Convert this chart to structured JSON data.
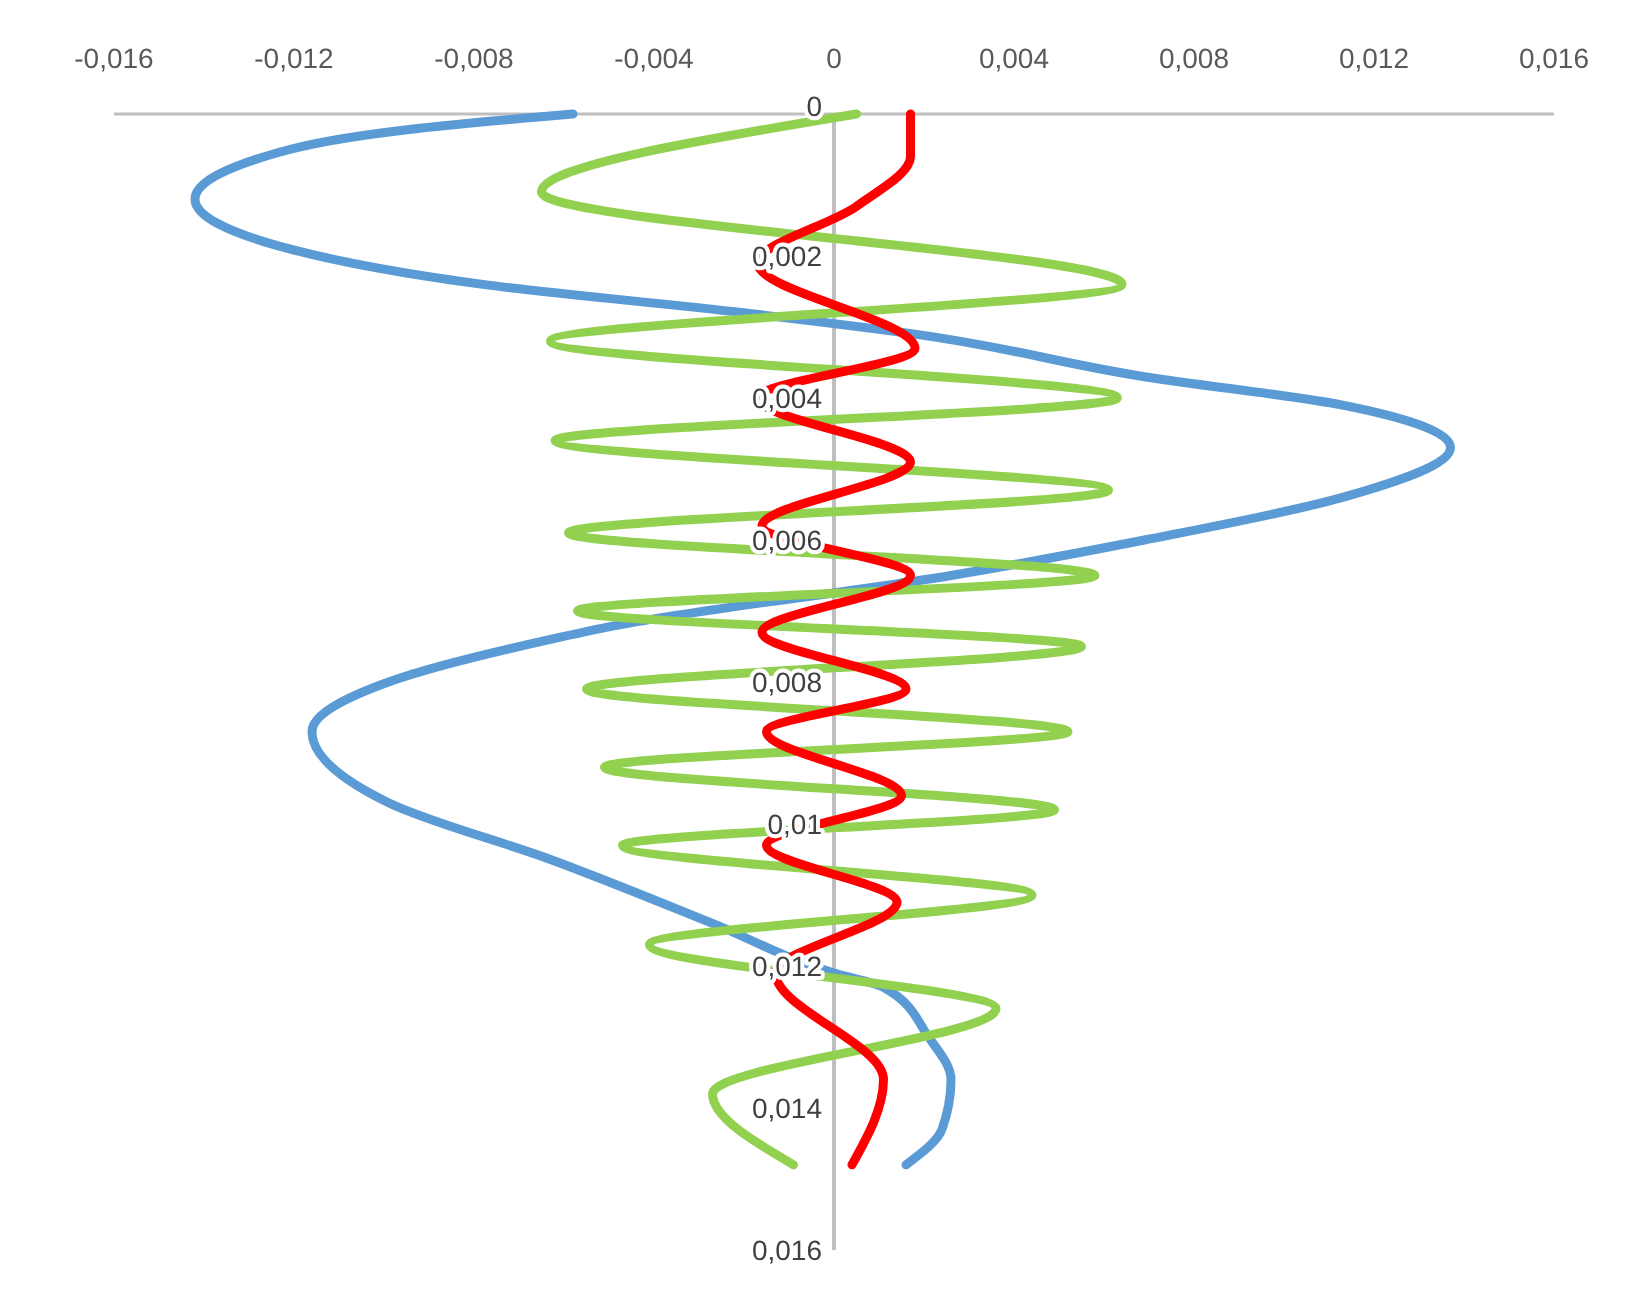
{
  "chart_data": {
    "type": "line",
    "marker": "none",
    "grid": false,
    "xlim": [
      -0.016,
      0.016
    ],
    "xticks": [
      {
        "value": -0.016,
        "label": "-0,016"
      },
      {
        "value": -0.012,
        "label": "-0,012"
      },
      {
        "value": -0.008,
        "label": "-0,008"
      },
      {
        "value": -0.004,
        "label": "-0,004"
      },
      {
        "value": 0,
        "label": "0"
      },
      {
        "value": 0.004,
        "label": "0,004"
      },
      {
        "value": 0.008,
        "label": "0,008"
      },
      {
        "value": 0.012,
        "label": "0,012"
      },
      {
        "value": 0.016,
        "label": "0,016"
      }
    ],
    "ylim": [
      0.016,
      0
    ],
    "yticks": [
      {
        "value": 0,
        "label": "0"
      },
      {
        "value": 0.002,
        "label": "0,002"
      },
      {
        "value": 0.004,
        "label": "0,004"
      },
      {
        "value": 0.006,
        "label": "0,006"
      },
      {
        "value": 0.008,
        "label": "0,008"
      },
      {
        "value": 0.01,
        "label": "0,01"
      },
      {
        "value": 0.012,
        "label": "0,012"
      },
      {
        "value": 0.014,
        "label": "0,014"
      },
      {
        "value": 0.016,
        "label": "0,016"
      }
    ],
    "series": [
      {
        "color": "#5b9bd5",
        "x": [
          -0.0058,
          -0.0092,
          -0.0121,
          -0.0142,
          -0.0121,
          -0.0078,
          -0.002,
          0.0018,
          0.0069,
          0.0113,
          0.0137,
          0.0113,
          0.0069,
          0.0026,
          -0.0048,
          -0.0063,
          -0.0099,
          -0.0116,
          -0.0099,
          -0.0063,
          -0.0027,
          0,
          0.0011,
          0.0021,
          0.0026,
          0.0024,
          0.0016
        ],
        "values": [
          0,
          0.0002,
          0.0005,
          0.0012,
          0.0019,
          0.0024,
          0.0028,
          0.0031,
          0.0037,
          0.0041,
          0.0047,
          0.0054,
          0.006,
          0.0065,
          0.0072,
          0.0074,
          0.008,
          0.0087,
          0.0097,
          0.0105,
          0.0114,
          0.0121,
          0.0123,
          0.013,
          0.0136,
          0.0143,
          0.0148
        ]
      },
      {
        "color": "#92d050",
        "x": [
          0.0005,
          -0.0065,
          0.0064,
          -0.0063,
          0.0063,
          -0.0062,
          0.0061,
          -0.0059,
          0.0058,
          -0.0057,
          0.0055,
          -0.0055,
          0.0052,
          -0.0051,
          0.0049,
          -0.0047,
          0.0044,
          -0.0041,
          0.0036,
          -0.0027,
          -0.0009
        ],
        "values": [
          0,
          0.0011,
          0.0024,
          0.0032,
          0.004,
          0.0046,
          0.0053,
          0.0059,
          0.0065,
          0.007,
          0.0075,
          0.0081,
          0.0087,
          0.0092,
          0.0098,
          0.0103,
          0.011,
          0.0117,
          0.0126,
          0.0138,
          0.0148
        ]
      },
      {
        "color": "#ff0000",
        "x": [
          0.0017,
          0.0017,
          0.0005,
          -0.0017,
          0.0018,
          -0.0017,
          0.0017,
          -0.0016,
          0.0017,
          -0.0016,
          0.0016,
          -0.0015,
          0.0015,
          -0.0015,
          0.0014,
          -0.0013,
          0.0011,
          0.0004
        ],
        "values": [
          0,
          0.0006,
          0.0013,
          0.0021,
          0.0033,
          0.004,
          0.0049,
          0.0058,
          0.0065,
          0.0073,
          0.0081,
          0.0087,
          0.0096,
          0.0103,
          0.0111,
          0.0121,
          0.0136,
          0.0148
        ]
      }
    ]
  }
}
